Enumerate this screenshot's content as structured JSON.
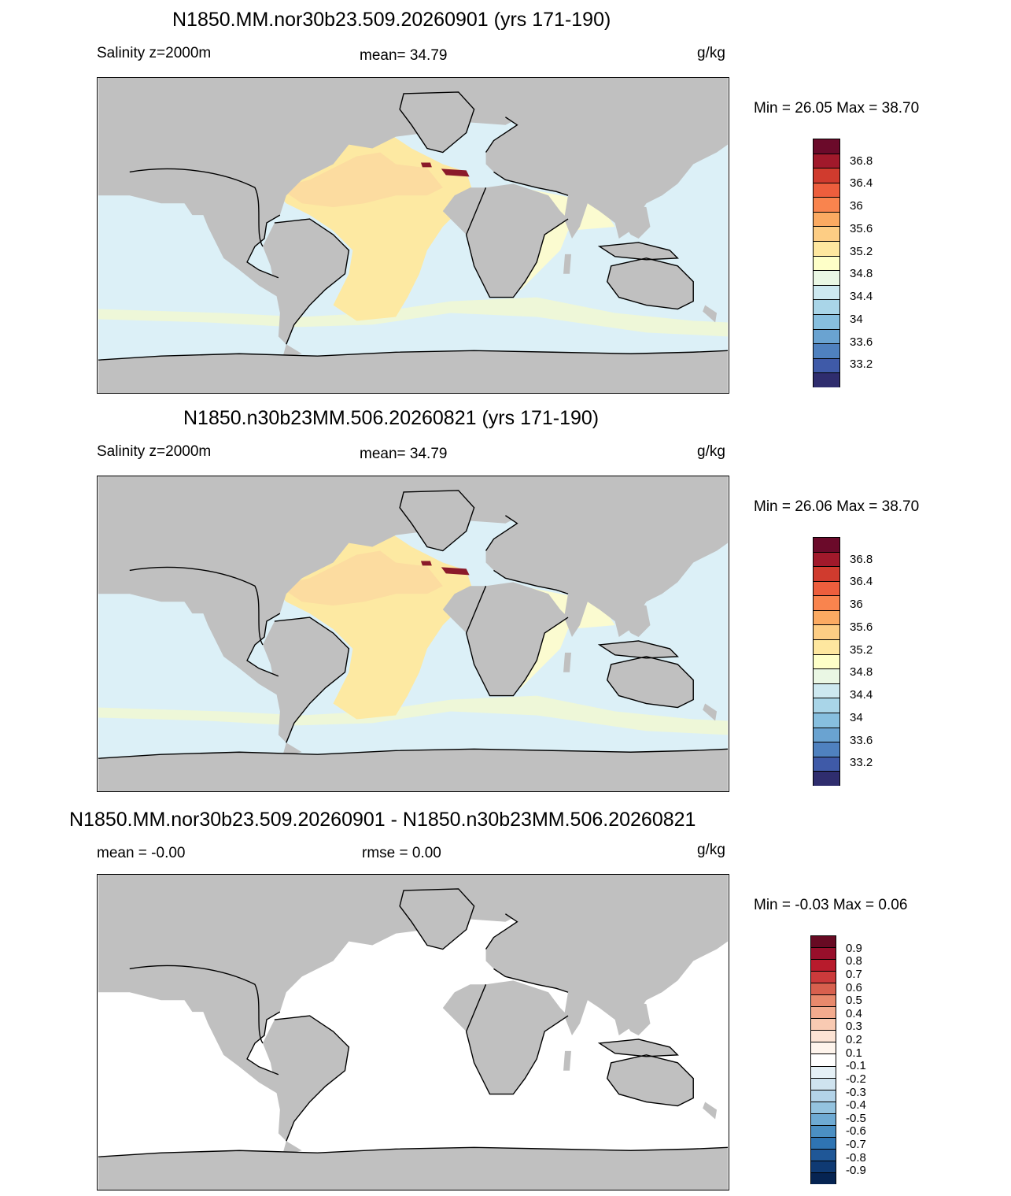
{
  "units": "g/kg",
  "land_color": "#c0c0c0",
  "panels": [
    {
      "title": "N1850.MM.nor30b23.509.20260901 (yrs 171-190)",
      "left_label": "Salinity z=2000m",
      "center_label": "mean=  34.79",
      "right_label": "g/kg",
      "minmax": "Min =  26.05 Max =  38.70",
      "fields": {
        "background": "#dcf0f7",
        "subtropical": "#fbfbd0",
        "atlantic": "#fde9a2",
        "atlantic_core": "#fcdca0",
        "med": "#8b1a2a",
        "south_band": "#eef7d8",
        "northern": "#f0f7da"
      },
      "colorbar": {
        "colors": [
          "#6b0a2a",
          "#a1192b",
          "#d03b2e",
          "#ed5e3d",
          "#f9844e",
          "#fbaa62",
          "#fdcd84",
          "#fee79f",
          "#feffc8",
          "#eaf7e4",
          "#cde8f0",
          "#a9d5e8",
          "#87bfdf",
          "#6aa3d1",
          "#4f81bf",
          "#3f5aa8",
          "#2f2d6e"
        ],
        "labels": [
          "36.8",
          "36.4",
          "36",
          "35.6",
          "35.2",
          "34.8",
          "34.4",
          "34",
          "33.6",
          "33.2"
        ]
      }
    },
    {
      "title": "N1850.n30b23MM.506.20260821 (yrs 171-190)",
      "left_label": "Salinity z=2000m",
      "center_label": "mean=  34.79",
      "right_label": "g/kg",
      "minmax": "Min =  26.06 Max =  38.70",
      "fields": {
        "background": "#dcf0f7",
        "subtropical": "#fbfbd0",
        "atlantic": "#fde9a2",
        "atlantic_core": "#fcdca0",
        "med": "#8b1a2a",
        "south_band": "#eef7d8",
        "northern": "#f0f7da"
      },
      "colorbar": {
        "colors": [
          "#6b0a2a",
          "#a1192b",
          "#d03b2e",
          "#ed5e3d",
          "#f9844e",
          "#fbaa62",
          "#fdcd84",
          "#fee79f",
          "#feffc8",
          "#eaf7e4",
          "#cde8f0",
          "#a9d5e8",
          "#87bfdf",
          "#6aa3d1",
          "#4f81bf",
          "#3f5aa8",
          "#2f2d6e"
        ],
        "labels": [
          "36.8",
          "36.4",
          "36",
          "35.6",
          "35.2",
          "34.8",
          "34.4",
          "34",
          "33.6",
          "33.2"
        ]
      }
    },
    {
      "title": "N1850.MM.nor30b23.509.20260901 - N1850.n30b23MM.506.20260821",
      "left_label": "mean =  -0.00",
      "center_label": "rmse =   0.00",
      "right_label": "g/kg",
      "minmax": "Min =  -0.03 Max =   0.06",
      "fields": {
        "background": "#ffffff",
        "subtropical": "#ffffff",
        "atlantic": "#ffffff",
        "atlantic_core": "#ffffff",
        "med": "#ffffff",
        "south_band": "#ffffff",
        "northern": "#ffffff"
      },
      "colorbar": {
        "colors": [
          "#670a23",
          "#980f2b",
          "#b81b2c",
          "#cc3a3b",
          "#d8604e",
          "#e8896c",
          "#f3ab8e",
          "#f9cab2",
          "#fce3d4",
          "#fef4ec",
          "#ffffff",
          "#e5f0f6",
          "#cfe3ef",
          "#b3d3e8",
          "#94c3df",
          "#6eaad3",
          "#4b8fc3",
          "#2f74b3",
          "#1f5797",
          "#0f3a73",
          "#062452"
        ],
        "labels": [
          "0.9",
          "0.8",
          "0.7",
          "0.6",
          "0.5",
          "0.4",
          "0.3",
          "0.2",
          "0.1",
          "-0.1",
          "-0.2",
          "-0.3",
          "-0.4",
          "-0.5",
          "-0.6",
          "-0.7",
          "-0.8",
          "-0.9"
        ]
      }
    }
  ]
}
